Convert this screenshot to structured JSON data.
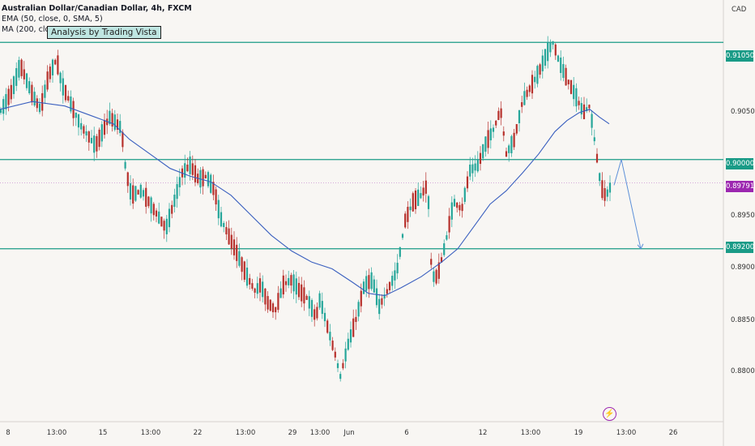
{
  "chart_data": {
    "type": "candlestick",
    "title": "Australian Dollar/Canadian Dollar, 4h, FXCM",
    "currency": "CAD",
    "indicators": [
      "EMA (50, close, 0, SMA, 5)",
      "MA (200, close, 0, SMA, 1)"
    ],
    "watermark": "Analysis by Trading Vista",
    "y_ticks": [
      "0.91050",
      "0.90500",
      "0.90000",
      "0.89500",
      "0.89000",
      "0.88500",
      "0.88000"
    ],
    "ylim": [
      0.8765,
      0.9143
    ],
    "x_ticks": [
      "8",
      "13:00",
      "15",
      "13:00",
      "22",
      "13:00",
      "29",
      "13:00",
      "Jun",
      "6",
      "12",
      "13:00",
      "19",
      "13:00",
      "26"
    ],
    "levels": [
      {
        "label": "0.91050",
        "value": 0.9105
      },
      {
        "label": "0.90000",
        "value": 0.9
      },
      {
        "label": "0.89200",
        "value": 0.892
      }
    ],
    "current_price": {
      "label": "0.89791",
      "value": 0.89791
    },
    "path_x": [
      0,
      15,
      25,
      40,
      50,
      60,
      70,
      76,
      86,
      100,
      118,
      135,
      150,
      155,
      162,
      175,
      190,
      205,
      215,
      225,
      235,
      245,
      255,
      265,
      272,
      282,
      295,
      305,
      315,
      322,
      330,
      340,
      350,
      360,
      370,
      380,
      390,
      395,
      405,
      415,
      420,
      430,
      440,
      450,
      460,
      468,
      478,
      490,
      500,
      510,
      520,
      528,
      533,
      540,
      550,
      560,
      570,
      580,
      590,
      600,
      610,
      618,
      625,
      635,
      645,
      655,
      665,
      675,
      683,
      690,
      700,
      710,
      720,
      728,
      735,
      740,
      745,
      750,
      755
    ],
    "path_y": [
      0.9042,
      0.9062,
      0.9085,
      0.9058,
      0.9045,
      0.9075,
      0.909,
      0.9068,
      0.9052,
      0.903,
      0.9012,
      0.9038,
      0.9028,
      0.8992,
      0.8968,
      0.8972,
      0.8955,
      0.8938,
      0.8962,
      0.8988,
      0.8995,
      0.8982,
      0.8985,
      0.8972,
      0.8948,
      0.8932,
      0.8912,
      0.8895,
      0.8882,
      0.8888,
      0.8872,
      0.8865,
      0.8888,
      0.8892,
      0.8882,
      0.8875,
      0.8858,
      0.8875,
      0.8848,
      0.8822,
      0.8805,
      0.8835,
      0.8858,
      0.8888,
      0.8892,
      0.8868,
      0.8882,
      0.89,
      0.8945,
      0.8962,
      0.8968,
      0.8978,
      0.8895,
      0.8895,
      0.8925,
      0.8962,
      0.8955,
      0.899,
      0.8995,
      0.9015,
      0.9028,
      0.9045,
      0.9005,
      0.9018,
      0.9052,
      0.9065,
      0.9078,
      0.9095,
      0.9105,
      0.9088,
      0.9072,
      0.9058,
      0.9042,
      0.9048,
      0.9012,
      0.8985,
      0.8968,
      0.897,
      0.8978
    ],
    "ma_x": [
      0,
      40,
      80,
      110,
      140,
      160,
      185,
      210,
      235,
      260,
      285,
      310,
      335,
      360,
      385,
      410,
      435,
      455,
      475,
      495,
      520,
      545,
      565,
      585,
      605,
      625,
      645,
      665,
      685,
      700,
      715,
      728,
      740,
      752
    ],
    "ma_y": [
      0.9045,
      0.9052,
      0.9048,
      0.904,
      0.9032,
      0.9018,
      0.9005,
      0.8992,
      0.8985,
      0.898,
      0.8968,
      0.895,
      0.8932,
      0.8918,
      0.8908,
      0.8902,
      0.889,
      0.888,
      0.8878,
      0.8885,
      0.8895,
      0.8908,
      0.892,
      0.894,
      0.896,
      0.8972,
      0.8988,
      0.9005,
      0.9025,
      0.9035,
      0.9042,
      0.9045,
      0.9038,
      0.9032
    ],
    "projection": [
      {
        "x": 758,
        "y": 0.8977
      },
      {
        "x": 767,
        "y": 0.9
      },
      {
        "x": 791,
        "y": 0.892
      }
    ]
  },
  "colors": {
    "bull": "#26a69a",
    "bear": "#b7312c",
    "ma": "#3a5fbf",
    "level": "#1a9b87",
    "price_tag": "#9c27b0",
    "projection": "#5b8fd8"
  }
}
